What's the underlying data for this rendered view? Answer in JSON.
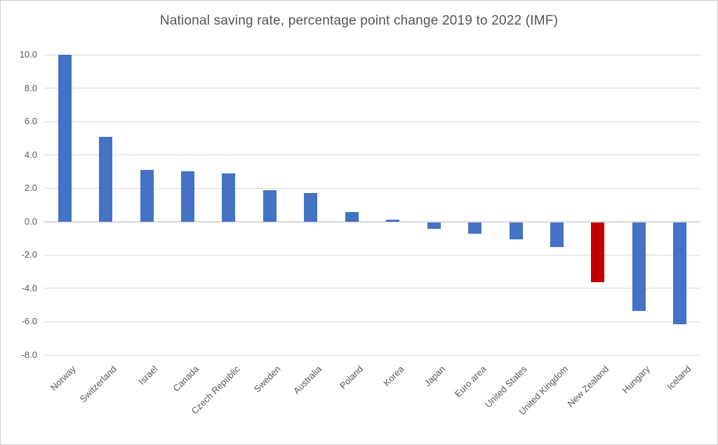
{
  "chart_data": {
    "type": "bar",
    "title": "National saving rate, percentage point change 2019 to 2022 (IMF)",
    "categories": [
      "Norway",
      "Switzerland",
      "Israel",
      "Canada",
      "Czech Republic",
      "Sweden",
      "Australia",
      "Poland",
      "Korea",
      "Japan",
      "Euro area",
      "United States",
      "United Kingdom",
      "New Zealand",
      "Hungary",
      "Iceland"
    ],
    "values": [
      10.0,
      5.1,
      3.1,
      3.0,
      2.9,
      1.9,
      1.7,
      0.6,
      0.1,
      -0.4,
      -0.7,
      -1.0,
      -1.5,
      -3.6,
      -5.3,
      -6.1
    ],
    "xlabel": "",
    "ylabel": "",
    "ylim": [
      -8,
      10
    ],
    "y_ticks": [
      "10.0",
      "8.0",
      "6.0",
      "4.0",
      "2.0",
      "0.0",
      "-2.0",
      "-4.0",
      "-6.0",
      "-8.0"
    ],
    "grid": true,
    "legend": false,
    "bar_color": "#4472C4",
    "highlight": {
      "category": "New Zealand",
      "color": "#C00000"
    },
    "gridline_color": "#D9D9D9",
    "axis_line_color": "#D9D9D9",
    "tick_label_color": "#595959",
    "title_color": "#535353"
  }
}
